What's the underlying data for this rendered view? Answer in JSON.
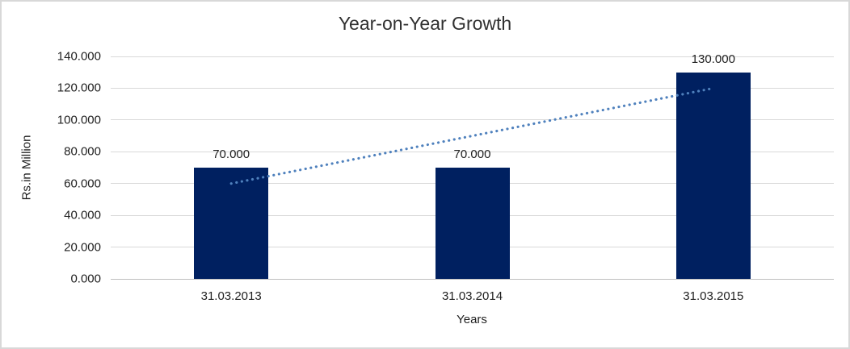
{
  "chart_data": {
    "type": "bar",
    "title": "Year-on-Year Growth",
    "categories": [
      "31.03.2013",
      "31.03.2014",
      "31.03.2015"
    ],
    "values": [
      70,
      70,
      130
    ],
    "value_labels": [
      "70.000",
      "70.000",
      "130.000"
    ],
    "xlabel": "Years",
    "ylabel": "Rs.in Million",
    "ylim": [
      0,
      140
    ],
    "ytick_step": 20,
    "ytick_labels": [
      "0.000",
      "20.000",
      "40.000",
      "60.000",
      "80.000",
      "100.000",
      "120.000",
      "140.000"
    ],
    "grid": "horizontal",
    "legend": "none",
    "colors": {
      "bar": "#002060",
      "trendline": "#4f81bd",
      "gridline": "#d9d9d9",
      "axis_line": "#bfbfbf",
      "text": "#1f1f1f"
    },
    "trendline": {
      "type": "linear",
      "style": "dotted",
      "points": [
        {
          "category_index": 0,
          "value": 60
        },
        {
          "category_index": 2,
          "value": 120
        }
      ]
    }
  }
}
